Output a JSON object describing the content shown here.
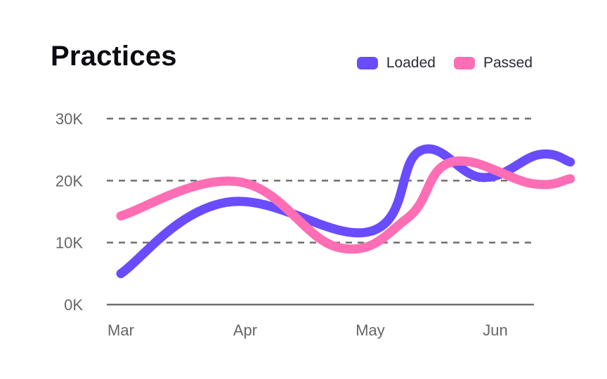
{
  "chart_data": {
    "type": "line",
    "title": "Practices",
    "xlabel": "",
    "ylabel": "",
    "categories": [
      "Mar",
      "Apr",
      "May",
      "Jun"
    ],
    "y_ticks": [
      "0K",
      "10K",
      "20K",
      "30K"
    ],
    "ylim": [
      0,
      30000
    ],
    "grid": true,
    "legend": "top-right",
    "series": [
      {
        "name": "Loaded",
        "color": "#6a4cff",
        "points": [
          {
            "x": 0.0,
            "y": 5000
          },
          {
            "x": 0.85,
            "y": 16500
          },
          {
            "x": 2.0,
            "y": 11800
          },
          {
            "x": 2.4,
            "y": 24800
          },
          {
            "x": 2.9,
            "y": 20500
          },
          {
            "x": 3.35,
            "y": 24200
          },
          {
            "x": 3.6,
            "y": 23000
          }
        ]
      },
      {
        "name": "Passed",
        "color": "#ff6eb4",
        "points": [
          {
            "x": 0.0,
            "y": 14300
          },
          {
            "x": 0.95,
            "y": 19800
          },
          {
            "x": 1.75,
            "y": 9200
          },
          {
            "x": 2.3,
            "y": 14000
          },
          {
            "x": 2.65,
            "y": 23000
          },
          {
            "x": 3.3,
            "y": 19500
          },
          {
            "x": 3.6,
            "y": 20300
          }
        ]
      }
    ]
  }
}
